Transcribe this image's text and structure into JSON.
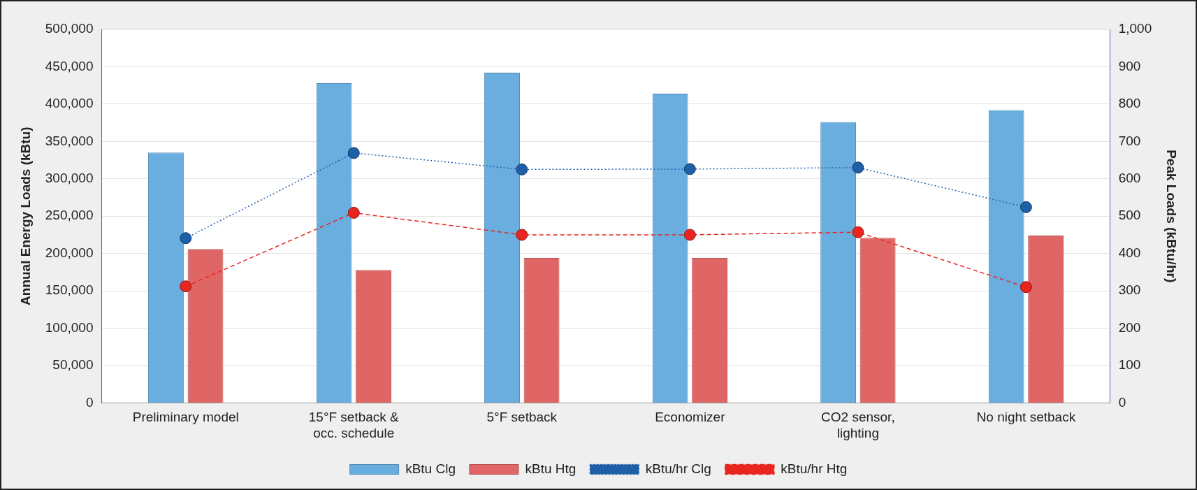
{
  "chart_data": {
    "type": "bar",
    "ylabel": "Annual Energy Loads (kBtu)",
    "y2label": "Peak Loads (kBtu/hr)",
    "categories": [
      "Preliminary model",
      "15°F setback & occ. schedule",
      "5°F setback",
      "Economizer",
      "CO2 sensor, lighting",
      "No night setback"
    ],
    "series": [
      {
        "name": "kBtu Clg",
        "color": "#6aaee0",
        "values": [
          335000,
          428000,
          442000,
          414000,
          376000,
          392000
        ]
      },
      {
        "name": "kBtu Htg",
        "color": "#e06666",
        "values": [
          206000,
          178000,
          194000,
          194000,
          221000,
          224000
        ]
      },
      {
        "name": "kBtu/hr Clg",
        "type": "line",
        "axis": "y2",
        "color": "#1f5fa8",
        "line_style": "dotted",
        "marker": "circle",
        "values": [
          441,
          669,
          625,
          626,
          630,
          524
        ]
      },
      {
        "name": "kBtu/hr Htg",
        "type": "line",
        "axis": "y2",
        "color": "#e8261f",
        "line_style": "dashed",
        "marker": "circle",
        "values": [
          312,
          509,
          450,
          450,
          457,
          310
        ]
      }
    ],
    "ylim": [
      0,
      500000
    ],
    "yticks": [
      0,
      {
        "value": 50000,
        "label": "50,000"
      },
      {
        "value": 100000,
        "label": "100,000"
      },
      {
        "value": 150000,
        "label": "150,000"
      },
      {
        "value": 200000,
        "label": "200,000"
      },
      {
        "value": 250000,
        "label": "250,000"
      },
      {
        "value": 300000,
        "label": "300,000"
      },
      {
        "value": 350000,
        "label": "350,000"
      },
      {
        "value": 400000,
        "label": "400,000"
      },
      {
        "value": 450000,
        "label": "450,000"
      },
      {
        "value": 500000,
        "label": "500,000"
      }
    ],
    "y2lim": [
      0,
      1000
    ],
    "y2ticks": [
      0,
      100,
      200,
      300,
      400,
      500,
      600,
      700,
      800,
      900,
      {
        "value": 1000,
        "label": "1,000"
      }
    ],
    "grid": "y",
    "legend": "bottom"
  }
}
